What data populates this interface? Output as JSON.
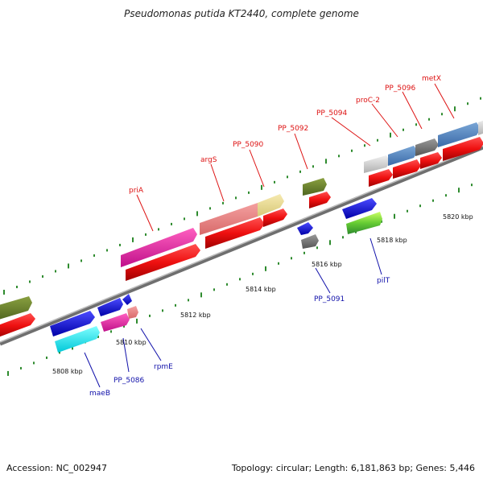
{
  "title": "Pseudomonas putida KT2440, complete genome",
  "footer": {
    "accession": "Accession: NC_002947",
    "summary": "Topology: circular; Length: 6,181,863 bp; Genes: 5,446"
  },
  "ticks": [
    "5808 kbp",
    "5810 kbp",
    "5812 kbp",
    "5814 kbp",
    "5816 kbp",
    "5818 kbp",
    "5820 kbp"
  ],
  "gene_labels_top": [
    "priA",
    "argS",
    "PP_5090",
    "PP_5092",
    "PP_5094",
    "proC-2",
    "PP_5096",
    "metX"
  ],
  "gene_labels_bottom": [
    "maeB",
    "PP_5086",
    "rpmE",
    "PP_5091",
    "pilT"
  ],
  "colors": {
    "backbone": "#8a8a8a",
    "top_label": "#dd1111",
    "bottom_label": "#1111aa",
    "tick_dots": "#2e8b2e",
    "cds": "#ee1111"
  }
}
